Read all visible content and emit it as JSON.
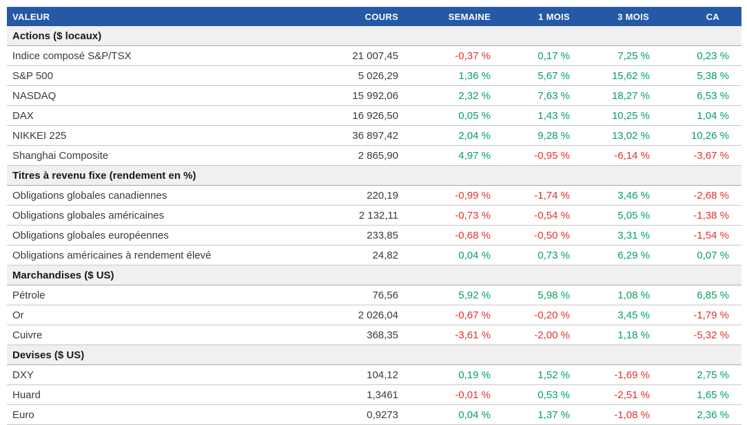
{
  "colors": {
    "header_bg": "#2559A5",
    "positive": "#00A25A",
    "negative": "#E03030",
    "section_bg": "#F0F0F0"
  },
  "header": {
    "columns": [
      "VALEUR",
      "COURS",
      "SEMAINE",
      "1 MOIS",
      "3 MOIS",
      "CA"
    ]
  },
  "sections": [
    {
      "title": "Actions ($ locaux)",
      "rows": [
        {
          "name": "Indice composé S&P/TSX",
          "cours": "21 007,45",
          "pct": [
            "-0,37 %",
            "0,17 %",
            "7,25 %",
            "0,23 %"
          ]
        },
        {
          "name": "S&P 500",
          "cours": "5 026,29",
          "pct": [
            "1,36 %",
            "5,67 %",
            "15,62 %",
            "5,38 %"
          ]
        },
        {
          "name": "NASDAQ",
          "cours": "15 992,06",
          "pct": [
            "2,32 %",
            "7,63 %",
            "18,27 %",
            "6,53 %"
          ]
        },
        {
          "name": "DAX",
          "cours": "16 926,50",
          "pct": [
            "0,05 %",
            "1,43 %",
            "10,25 %",
            "1,04 %"
          ]
        },
        {
          "name": "NIKKEI 225",
          "cours": "36 897,42",
          "pct": [
            "2,04 %",
            "9,28 %",
            "13,02 %",
            "10,26 %"
          ]
        },
        {
          "name": "Shanghai Composite",
          "cours": "2 865,90",
          "pct": [
            "4,97 %",
            "-0,95 %",
            "-6,14 %",
            "-3,67 %"
          ]
        }
      ]
    },
    {
      "title": "Titres à revenu fixe (rendement en %)",
      "rows": [
        {
          "name": "Obligations globales canadiennes",
          "cours": "220,19",
          "pct": [
            "-0,99 %",
            "-1,74 %",
            "3,46 %",
            "-2,68 %"
          ]
        },
        {
          "name": "Obligations globales américaines",
          "cours": "2 132,11",
          "pct": [
            "-0,73 %",
            "-0,54 %",
            "5,05 %",
            "-1,38 %"
          ]
        },
        {
          "name": "Obligations globales européennes",
          "cours": "233,85",
          "pct": [
            "-0,68 %",
            "-0,50 %",
            "3,31 %",
            "-1,54 %"
          ]
        },
        {
          "name": "Obligations américaines à rendement élevé",
          "cours": "24,82",
          "pct": [
            "0,04 %",
            "0,73 %",
            "6,29 %",
            "0,07 %"
          ]
        }
      ]
    },
    {
      "title": "Marchandises ($ US)",
      "rows": [
        {
          "name": "Pétrole",
          "cours": "76,56",
          "pct": [
            "5,92 %",
            "5,98 %",
            "1,08 %",
            "6,85 %"
          ]
        },
        {
          "name": "Or",
          "cours": "2 026,04",
          "pct": [
            "-0,67 %",
            "-0,20 %",
            "3,45 %",
            "-1,79 %"
          ]
        },
        {
          "name": "Cuivre",
          "cours": "368,35",
          "pct": [
            "-3,61 %",
            "-2,00 %",
            "1,18 %",
            "-5,32 %"
          ]
        }
      ]
    },
    {
      "title": "Devises ($ US)",
      "rows": [
        {
          "name": "DXY",
          "cours": "104,12",
          "pct": [
            "0,19 %",
            "1,52 %",
            "-1,69 %",
            "2,75 %"
          ]
        },
        {
          "name": "Huard",
          "cours": "1,3461",
          "pct": [
            "-0,01 %",
            "0,53 %",
            "-2,51 %",
            "1,65 %"
          ]
        },
        {
          "name": "Euro",
          "cours": "0,9273",
          "pct": [
            "0,04 %",
            "1,37 %",
            "-1,08 %",
            "2,36 %"
          ]
        }
      ]
    }
  ]
}
